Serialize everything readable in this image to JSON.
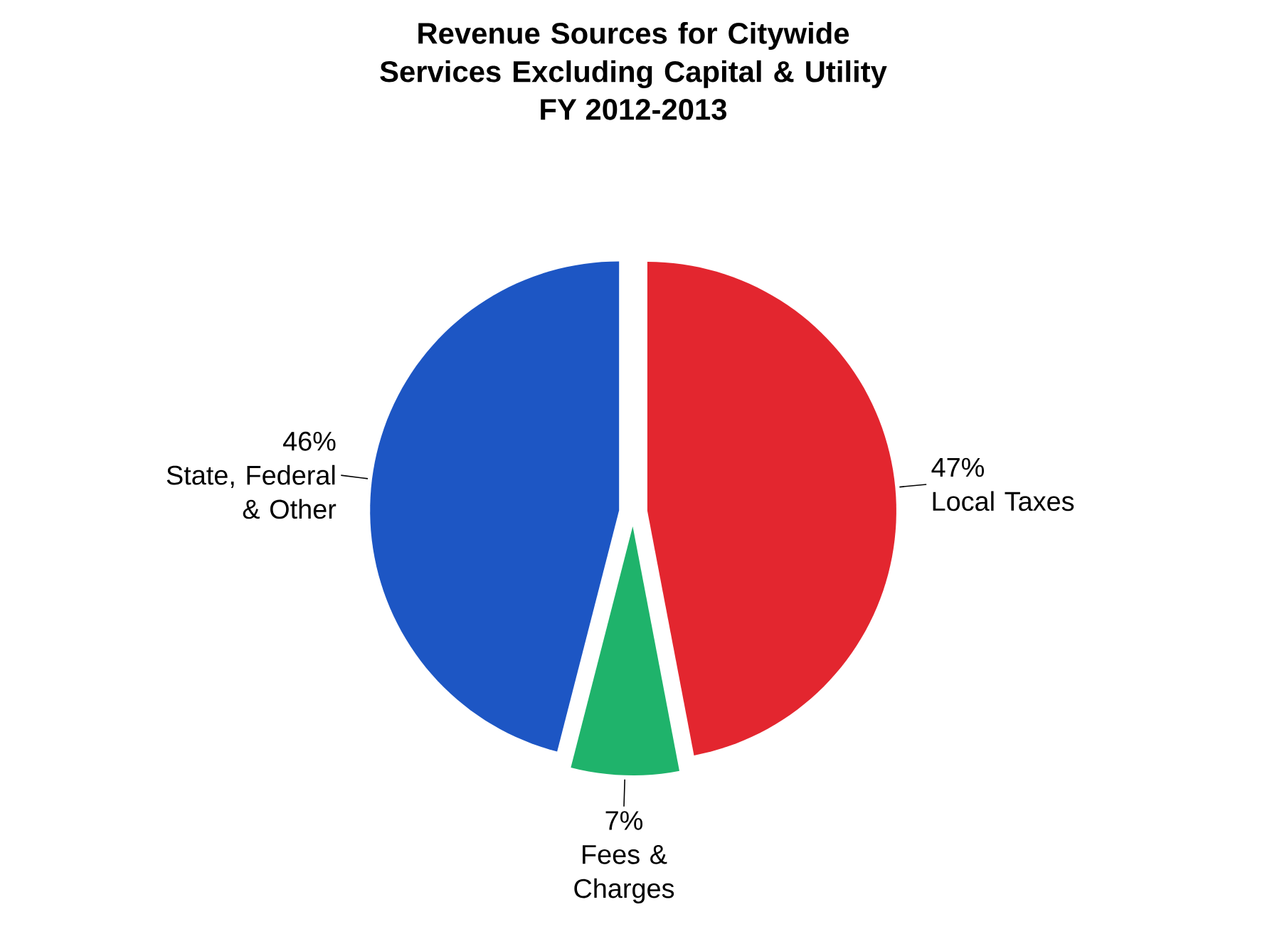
{
  "chart_data": {
    "type": "pie",
    "title": "Revenue Sources for Citywide Services Excluding Capital & Utility",
    "subtitle": "FY 2012-2013",
    "categories": [
      "Local Taxes",
      "Fees & Charges",
      "State, Federal & Other"
    ],
    "values": [
      47,
      7,
      46
    ],
    "value_labels": [
      "47%",
      "7%",
      "46%"
    ],
    "colors": [
      "#e3262f",
      "#1fb36b",
      "#1d56c4"
    ]
  }
}
